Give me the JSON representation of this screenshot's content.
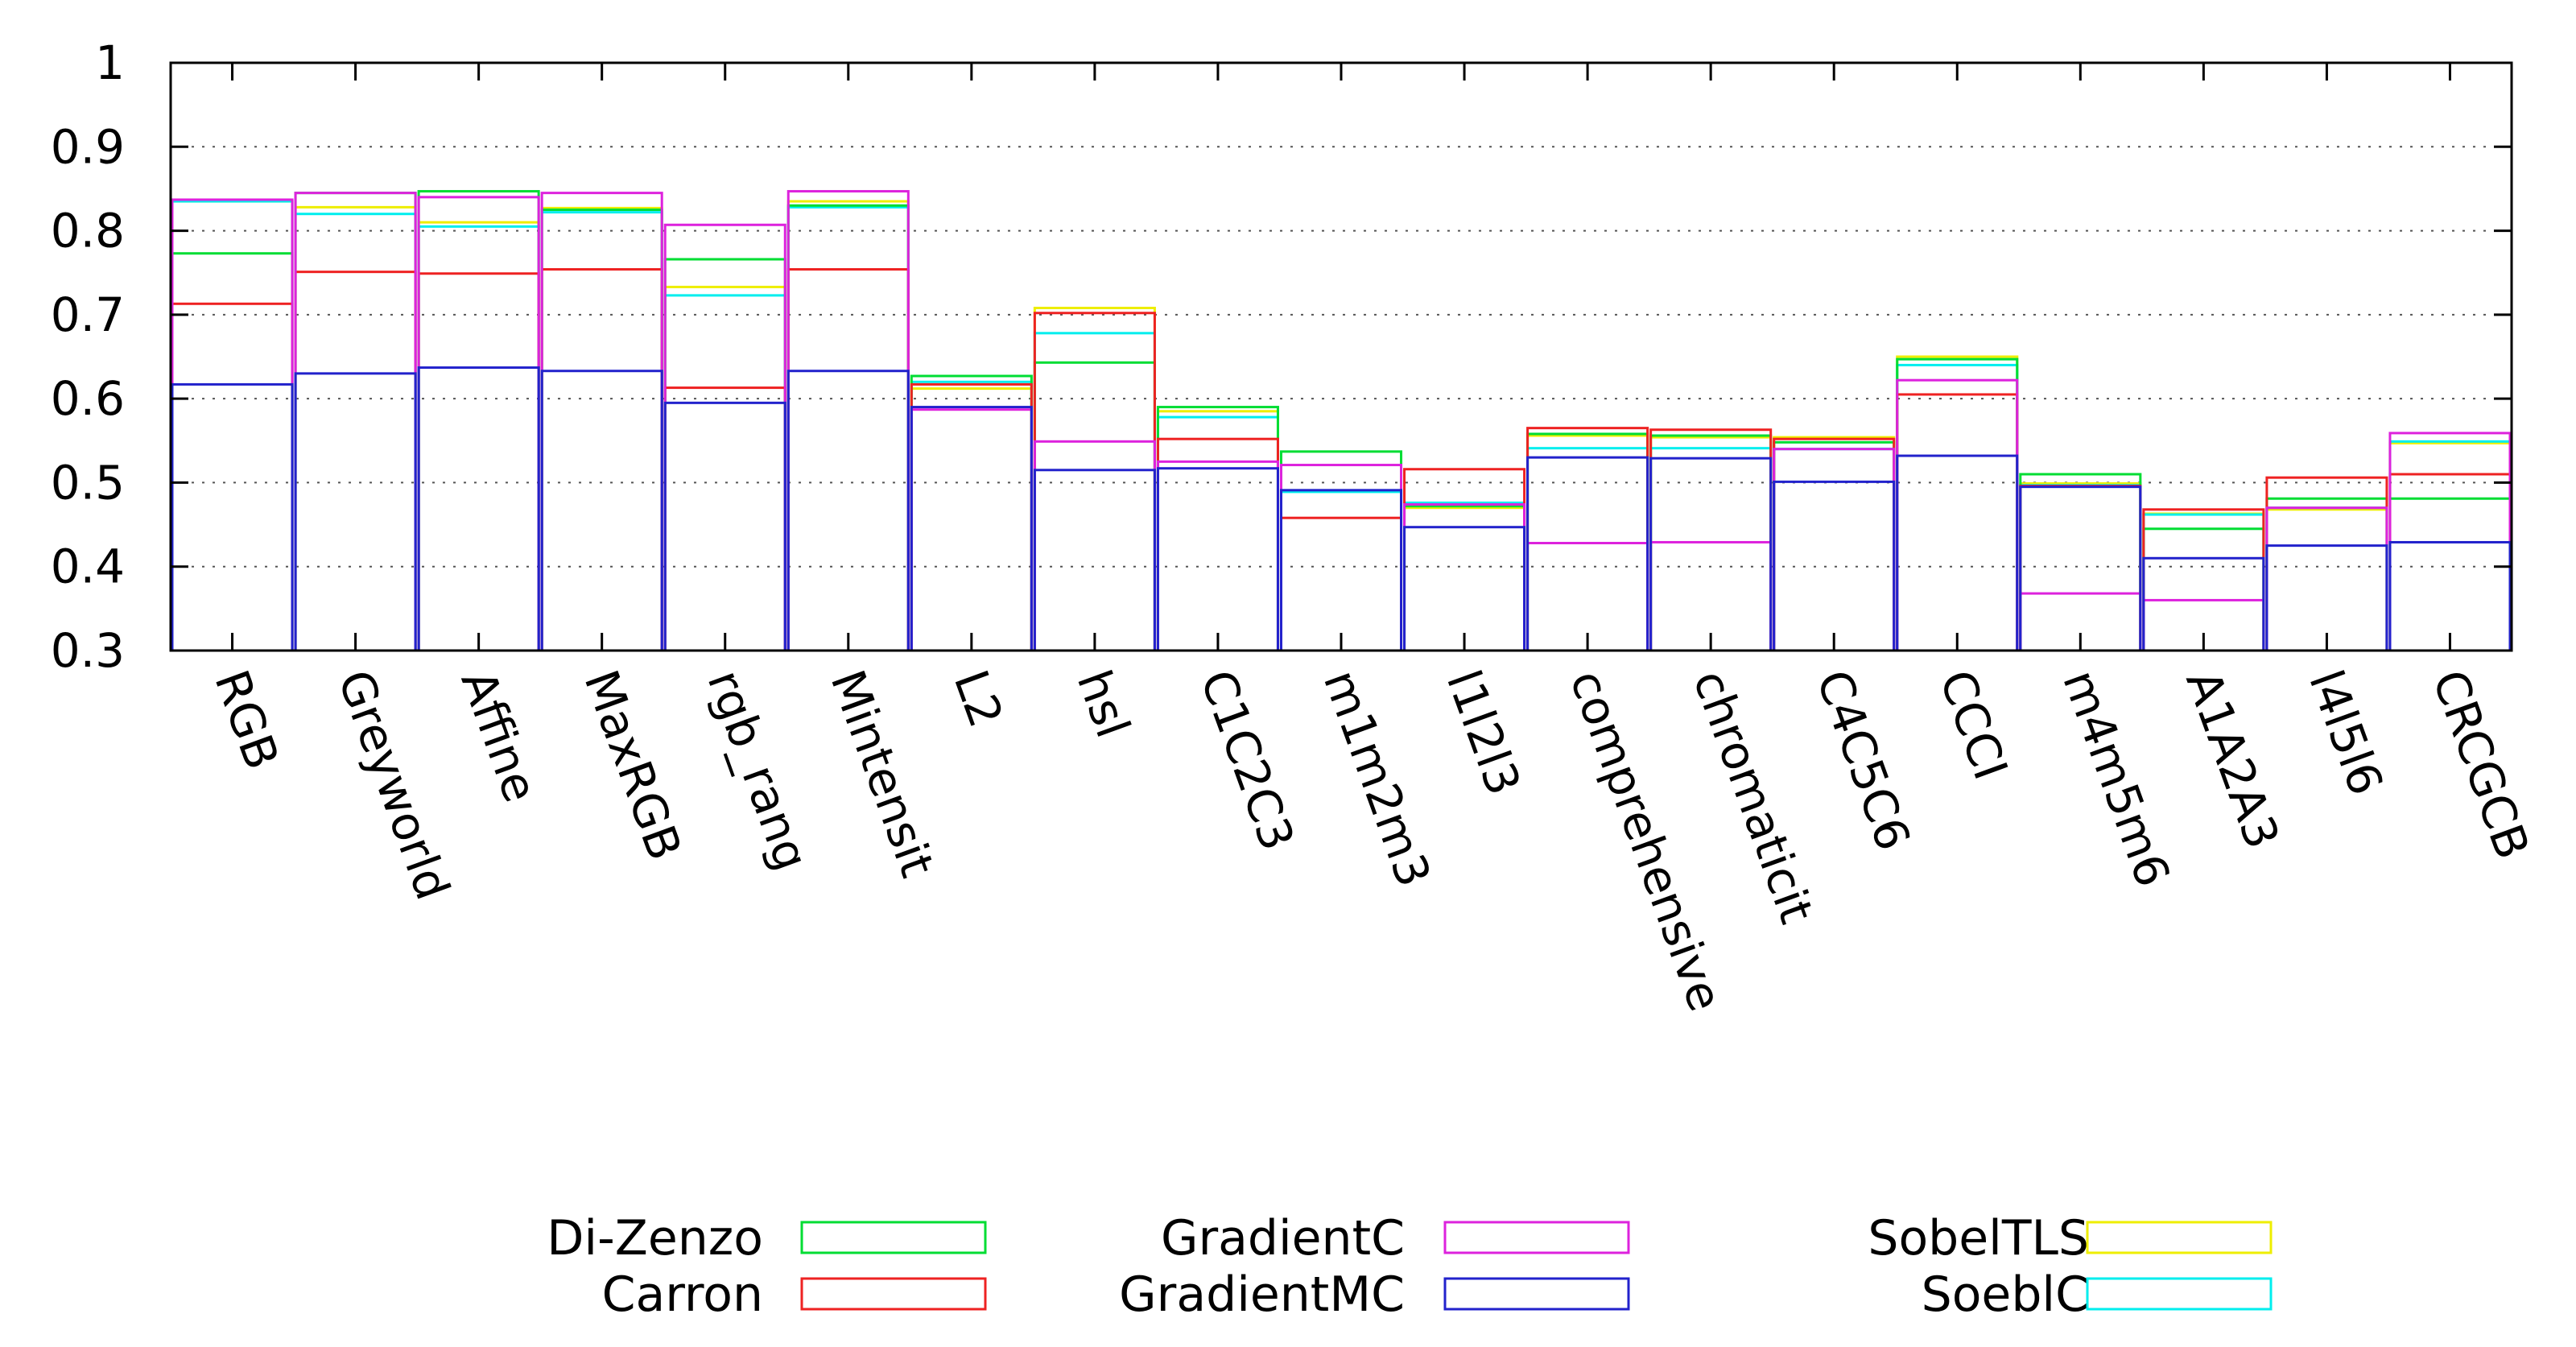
{
  "chart_data": {
    "type": "bar",
    "style": "overlaid-steps",
    "title": "",
    "xlabel": "",
    "ylabel": "",
    "ylim": [
      0.3,
      1.0
    ],
    "yticks": [
      "0.3",
      "0.4",
      "0.5",
      "0.6",
      "0.7",
      "0.8",
      "0.9",
      "1"
    ],
    "grid": "horizontal dotted",
    "legend_position": "bottom",
    "categories": [
      "RGB",
      "Greyworld",
      "Affine",
      "MaxRGB",
      "rgb_rang",
      "Mintensit",
      "L2",
      "hsl",
      "C1C2C3",
      "m1m2m3",
      "l1l2l3",
      "comprehensive",
      "chromaticit",
      "C4C5C6",
      "CCCI",
      "m4m5m6",
      "A1A2A3",
      "l4l5l6",
      "CRCGCB"
    ],
    "series": [
      {
        "name": "Di-Zenzo",
        "color": "#00dd33",
        "values": [
          0.773,
          0.845,
          0.847,
          0.825,
          0.766,
          0.83,
          0.627,
          0.643,
          0.59,
          0.537,
          0.472,
          0.558,
          0.556,
          0.548,
          0.647,
          0.51,
          0.445,
          0.481,
          0.481
        ]
      },
      {
        "name": "Carron",
        "color": "#ee2222",
        "values": [
          0.713,
          0.751,
          0.749,
          0.754,
          0.613,
          0.754,
          0.617,
          0.702,
          0.552,
          0.458,
          0.516,
          0.565,
          0.563,
          0.552,
          0.605,
          0.496,
          0.468,
          0.506,
          0.51
        ]
      },
      {
        "name": "GradientC",
        "color": "#dd22dd",
        "values": [
          0.837,
          0.845,
          0.84,
          0.845,
          0.807,
          0.847,
          0.587,
          0.549,
          0.525,
          0.521,
          0.474,
          0.428,
          0.429,
          0.54,
          0.622,
          0.368,
          0.36,
          0.47,
          0.559
        ]
      },
      {
        "name": "GradientMC",
        "color": "#2222cc",
        "values": [
          0.617,
          0.63,
          0.637,
          0.633,
          0.595,
          0.633,
          0.59,
          0.515,
          0.517,
          0.491,
          0.447,
          0.53,
          0.529,
          0.501,
          0.532,
          0.495,
          0.41,
          0.425,
          0.429
        ]
      },
      {
        "name": "SobelTLS",
        "color": "#eeee00",
        "values": [
          0.835,
          0.828,
          0.81,
          0.827,
          0.733,
          0.835,
          0.612,
          0.708,
          0.585,
          0.49,
          0.47,
          0.556,
          0.554,
          0.554,
          0.65,
          0.499,
          0.463,
          0.468,
          0.547
        ]
      },
      {
        "name": "SoeblC",
        "color": "#00eeee",
        "values": [
          0.835,
          0.82,
          0.805,
          0.822,
          0.723,
          0.828,
          0.62,
          0.678,
          0.578,
          0.489,
          0.476,
          0.541,
          0.541,
          0.54,
          0.64,
          0.497,
          0.462,
          0.47,
          0.549
        ]
      }
    ]
  }
}
